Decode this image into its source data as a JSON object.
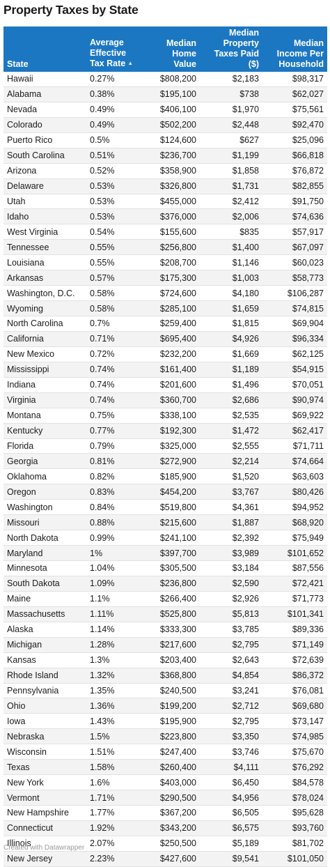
{
  "title": "Property Taxes by State",
  "footer": "Created with Datawrapper",
  "colors": {
    "header_bg": "#1c77c3",
    "header_text": "#ffffff",
    "stripe": "#f3f3f3"
  },
  "chart_data": {
    "type": "table",
    "title": "Property Taxes by State",
    "sort": {
      "column": "Average Effective Tax Rate",
      "direction": "ascending",
      "indicator": "triangle-up-icon"
    },
    "columns": [
      "State",
      "Average Effective Tax Rate",
      "Median Home Value",
      "Median Property Taxes Paid ($)",
      "Median Income Per Household"
    ],
    "header_lines": [
      [
        "State"
      ],
      [
        "Average",
        "Effective",
        "Tax Rate"
      ],
      [
        "Median",
        "Home",
        "Value"
      ],
      [
        "Median",
        "Property",
        "Taxes Paid",
        "($)"
      ],
      [
        "Median",
        "Income Per",
        "Household"
      ]
    ],
    "rows": [
      [
        "Hawaii",
        "0.27%",
        "$808,200",
        "$2,183",
        "$98,317"
      ],
      [
        "Alabama",
        "0.38%",
        "$195,100",
        "$738",
        "$62,027"
      ],
      [
        "Nevada",
        "0.49%",
        "$406,100",
        "$1,970",
        "$75,561"
      ],
      [
        "Colorado",
        "0.49%",
        "$502,200",
        "$2,448",
        "$92,470"
      ],
      [
        "Puerto Rico",
        "0.5%",
        "$124,600",
        "$627",
        "$25,096"
      ],
      [
        "South Carolina",
        "0.51%",
        "$236,700",
        "$1,199",
        "$66,818"
      ],
      [
        "Arizona",
        "0.52%",
        "$358,900",
        "$1,858",
        "$76,872"
      ],
      [
        "Delaware",
        "0.53%",
        "$326,800",
        "$1,731",
        "$82,855"
      ],
      [
        "Utah",
        "0.53%",
        "$455,000",
        "$2,412",
        "$91,750"
      ],
      [
        "Idaho",
        "0.53%",
        "$376,000",
        "$2,006",
        "$74,636"
      ],
      [
        "West Virginia",
        "0.54%",
        "$155,600",
        "$835",
        "$57,917"
      ],
      [
        "Tennessee",
        "0.55%",
        "$256,800",
        "$1,400",
        "$67,097"
      ],
      [
        "Louisiana",
        "0.55%",
        "$208,700",
        "$1,146",
        "$60,023"
      ],
      [
        "Arkansas",
        "0.57%",
        "$175,300",
        "$1,003",
        "$58,773"
      ],
      [
        "Washington, D.C.",
        "0.58%",
        "$724,600",
        "$4,180",
        "$106,287"
      ],
      [
        "Wyoming",
        "0.58%",
        "$285,100",
        "$1,659",
        "$74,815"
      ],
      [
        "North Carolina",
        "0.7%",
        "$259,400",
        "$1,815",
        "$69,904"
      ],
      [
        "California",
        "0.71%",
        "$695,400",
        "$4,926",
        "$96,334"
      ],
      [
        "New Mexico",
        "0.72%",
        "$232,200",
        "$1,669",
        "$62,125"
      ],
      [
        "Mississippi",
        "0.74%",
        "$161,400",
        "$1,189",
        "$54,915"
      ],
      [
        "Indiana",
        "0.74%",
        "$201,600",
        "$1,496",
        "$70,051"
      ],
      [
        "Virginia",
        "0.74%",
        "$360,700",
        "$2,686",
        "$90,974"
      ],
      [
        "Montana",
        "0.75%",
        "$338,100",
        "$2,535",
        "$69,922"
      ],
      [
        "Kentucky",
        "0.77%",
        "$192,300",
        "$1,472",
        "$62,417"
      ],
      [
        "Florida",
        "0.79%",
        "$325,000",
        "$2,555",
        "$71,711"
      ],
      [
        "Georgia",
        "0.81%",
        "$272,900",
        "$2,214",
        "$74,664"
      ],
      [
        "Oklahoma",
        "0.82%",
        "$185,900",
        "$1,520",
        "$63,603"
      ],
      [
        "Oregon",
        "0.83%",
        "$454,200",
        "$3,767",
        "$80,426"
      ],
      [
        "Washington",
        "0.84%",
        "$519,800",
        "$4,361",
        "$94,952"
      ],
      [
        "Missouri",
        "0.88%",
        "$215,600",
        "$1,887",
        "$68,920"
      ],
      [
        "North Dakota",
        "0.99%",
        "$241,100",
        "$2,392",
        "$75,949"
      ],
      [
        "Maryland",
        "1%",
        "$397,700",
        "$3,989",
        "$101,652"
      ],
      [
        "Minnesota",
        "1.04%",
        "$305,500",
        "$3,184",
        "$87,556"
      ],
      [
        "South Dakota",
        "1.09%",
        "$236,800",
        "$2,590",
        "$72,421"
      ],
      [
        "Maine",
        "1.1%",
        "$266,400",
        "$2,926",
        "$71,773"
      ],
      [
        "Massachusetts",
        "1.11%",
        "$525,800",
        "$5,813",
        "$101,341"
      ],
      [
        "Alaska",
        "1.14%",
        "$333,300",
        "$3,785",
        "$89,336"
      ],
      [
        "Michigan",
        "1.28%",
        "$217,600",
        "$2,795",
        "$71,149"
      ],
      [
        "Kansas",
        "1.3%",
        "$203,400",
        "$2,643",
        "$72,639"
      ],
      [
        "Rhode Island",
        "1.32%",
        "$368,800",
        "$4,854",
        "$86,372"
      ],
      [
        "Pennsylvania",
        "1.35%",
        "$240,500",
        "$3,241",
        "$76,081"
      ],
      [
        "Ohio",
        "1.36%",
        "$199,200",
        "$2,712",
        "$69,680"
      ],
      [
        "Iowa",
        "1.43%",
        "$195,900",
        "$2,795",
        "$73,147"
      ],
      [
        "Nebraska",
        "1.5%",
        "$223,800",
        "$3,350",
        "$74,985"
      ],
      [
        "Wisconsin",
        "1.51%",
        "$247,400",
        "$3,746",
        "$75,670"
      ],
      [
        "Texas",
        "1.58%",
        "$260,400",
        "$4,111",
        "$76,292"
      ],
      [
        "New York",
        "1.6%",
        "$403,000",
        "$6,450",
        "$84,578"
      ],
      [
        "Vermont",
        "1.71%",
        "$290,500",
        "$4,956",
        "$78,024"
      ],
      [
        "New Hampshire",
        "1.77%",
        "$367,200",
        "$6,505",
        "$95,628"
      ],
      [
        "Connecticut",
        "1.92%",
        "$343,200",
        "$6,575",
        "$93,760"
      ],
      [
        "Illinois",
        "2.07%",
        "$250,500",
        "$5,189",
        "$81,702"
      ],
      [
        "New Jersey",
        "2.23%",
        "$427,600",
        "$9,541",
        "$101,050"
      ]
    ]
  }
}
